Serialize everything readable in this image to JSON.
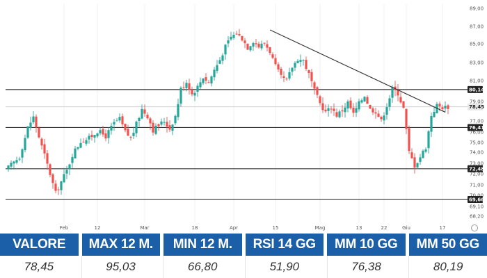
{
  "chart_data": {
    "type": "candlestick",
    "y_ticks": [
      89.0,
      87.0,
      85.0,
      83.0,
      81.0,
      79.0,
      77.0,
      76.0,
      75.0,
      74.0,
      73.0,
      72.0,
      71.0,
      70.0,
      69.1,
      68.2
    ],
    "y_tick_labels": [
      "89,00",
      "87,00",
      "85,00",
      "83,00",
      "81,00",
      "79,00",
      "77,00",
      "76,00",
      "75,00",
      "74,00",
      "73,00",
      "72,00",
      "71,00",
      "70,00",
      "69,10",
      "68,20"
    ],
    "x_tick_labels": [
      {
        "label": "Feb",
        "day": 20
      },
      {
        "label": "12",
        "day": 32
      },
      {
        "label": "Mar",
        "day": 49
      },
      {
        "label": "18",
        "day": 67
      },
      {
        "label": "Apr",
        "day": 81
      },
      {
        "label": "15",
        "day": 96
      },
      {
        "label": "Mag",
        "day": 112
      },
      {
        "label": "13",
        "day": 126
      },
      {
        "label": "22",
        "day": 135
      },
      {
        "label": "Giu",
        "day": 143
      },
      {
        "label": "17",
        "day": 156
      }
    ],
    "levels": [
      {
        "value": 80.14,
        "label": "80,14"
      },
      {
        "value": 76.41,
        "label": "76,41"
      },
      {
        "value": 72.48,
        "label": "72,48"
      },
      {
        "value": 69.66,
        "label": "69,66"
      }
    ],
    "current_price": {
      "value": 78.45,
      "label": "78,45"
    },
    "trendline": [
      {
        "day": 94,
        "price": 86.6
      },
      {
        "day": 157,
        "price": 77.9
      }
    ],
    "up_color": "#26a69a",
    "down_color": "#ef5350",
    "close_path": [
      [
        0,
        72.6
      ],
      [
        4,
        73.6
      ],
      [
        7,
        76.4
      ],
      [
        9,
        77.4
      ],
      [
        12,
        74.6
      ],
      [
        15,
        72.0
      ],
      [
        17,
        70.2
      ],
      [
        19,
        71.3
      ],
      [
        21,
        72.3
      ],
      [
        23,
        73.8
      ],
      [
        26,
        75.1
      ],
      [
        29,
        75.4
      ],
      [
        32,
        76.1
      ],
      [
        35,
        75.6
      ],
      [
        38,
        76.8
      ],
      [
        40,
        77.2
      ],
      [
        42,
        76.0
      ],
      [
        44,
        75.4
      ],
      [
        46,
        76.7
      ],
      [
        48,
        78.2
      ],
      [
        50,
        77.5
      ],
      [
        52,
        76.2
      ],
      [
        54,
        76.6
      ],
      [
        56,
        77.0
      ],
      [
        58,
        76.3
      ],
      [
        60,
        77.5
      ],
      [
        62,
        80.2
      ],
      [
        64,
        80.9
      ],
      [
        66,
        79.7
      ],
      [
        68,
        80.4
      ],
      [
        70,
        81.4
      ],
      [
        72,
        80.8
      ],
      [
        74,
        82.2
      ],
      [
        76,
        83.3
      ],
      [
        78,
        84.7
      ],
      [
        80,
        85.8
      ],
      [
        82,
        86.2
      ],
      [
        84,
        85.6
      ],
      [
        86,
        84.6
      ],
      [
        88,
        85.3
      ],
      [
        90,
        84.7
      ],
      [
        92,
        85.1
      ],
      [
        94,
        84.2
      ],
      [
        96,
        82.6
      ],
      [
        98,
        81.4
      ],
      [
        100,
        81.0
      ],
      [
        102,
        82.5
      ],
      [
        104,
        83.4
      ],
      [
        106,
        83.2
      ],
      [
        108,
        81.7
      ],
      [
        110,
        80.0
      ],
      [
        112,
        78.8
      ],
      [
        114,
        77.9
      ],
      [
        116,
        78.4
      ],
      [
        118,
        77.6
      ],
      [
        120,
        78.1
      ],
      [
        122,
        78.9
      ],
      [
        124,
        77.7
      ],
      [
        126,
        78.8
      ],
      [
        128,
        79.6
      ],
      [
        130,
        78.2
      ],
      [
        132,
        78.0
      ],
      [
        134,
        77.0
      ],
      [
        136,
        78.6
      ],
      [
        138,
        80.2
      ],
      [
        140,
        79.8
      ],
      [
        142,
        78.3
      ],
      [
        144,
        74.0
      ],
      [
        146,
        72.8
      ],
      [
        148,
        73.6
      ],
      [
        150,
        74.5
      ],
      [
        152,
        77.6
      ],
      [
        154,
        78.6
      ],
      [
        156,
        78.4
      ],
      [
        158,
        78.45
      ]
    ]
  },
  "stats": {
    "headers": [
      "VALORE",
      "MAX 12 M.",
      "MIN 12 M.",
      "RSI 14 GG",
      "MM 10 GG",
      "MM 50 GG"
    ],
    "values": [
      "78,45",
      "95,03",
      "66,80",
      "51,90",
      "76,38",
      "80,19"
    ]
  }
}
